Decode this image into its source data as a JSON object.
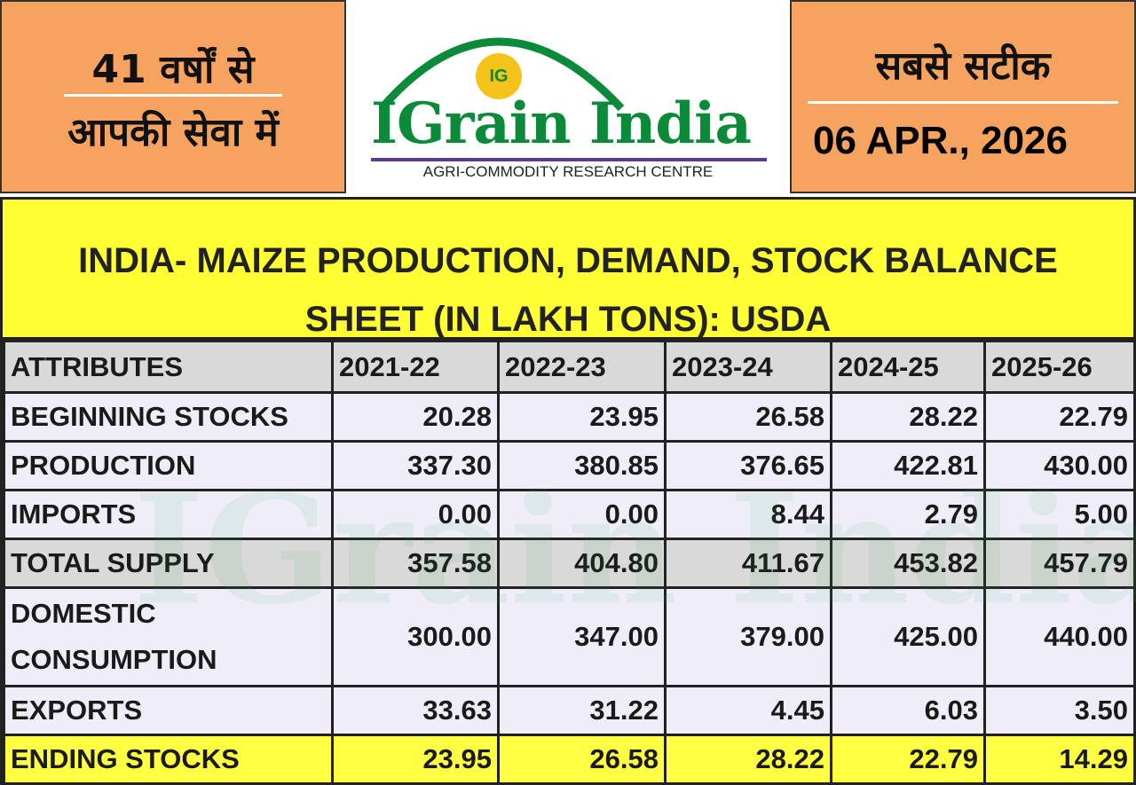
{
  "header": {
    "left_line1": "41 वर्षों से",
    "left_line2": "आपकी सेवा में",
    "logo_badge": "IG",
    "logo_name": "IGrain India",
    "logo_tagline": "AGRI-COMMODITY RESEARCH CENTRE",
    "right_title": "सबसे सटीक",
    "date": "06 APR., 2026"
  },
  "watermark": "IGrain India",
  "table": {
    "title": [
      "INDIA- MAIZE PRODUCTION, DEMAND, STOCK BALANCE",
      "SHEET (IN LAKH TONS): USDA"
    ],
    "columns": [
      "ATTRIBUTES",
      "2021-22",
      "2022-23",
      "2023-24",
      "2024-25",
      "2025-26"
    ],
    "rows": [
      [
        "BEGINNING STOCKS",
        "20.28",
        "23.95",
        "26.58",
        "28.22",
        "22.79"
      ],
      [
        "PRODUCTION",
        "337.30",
        "380.85",
        "376.65",
        "422.81",
        "430.00"
      ],
      [
        "IMPORTS",
        "0.00",
        "0.00",
        "8.44",
        "2.79",
        "5.00"
      ],
      [
        "TOTAL SUPPLY",
        "357.58",
        "404.80",
        "411.67",
        "453.82",
        "457.79"
      ],
      [
        "DOMESTIC CONSUMPTION",
        "300.00",
        "347.00",
        "379.00",
        "425.00",
        "440.00"
      ],
      [
        "EXPORTS",
        "33.63",
        "31.22",
        "4.45",
        "6.03",
        "3.50"
      ],
      [
        "ENDING STOCKS",
        "23.95",
        "26.58",
        "28.22",
        "22.79",
        "14.29"
      ]
    ]
  }
}
